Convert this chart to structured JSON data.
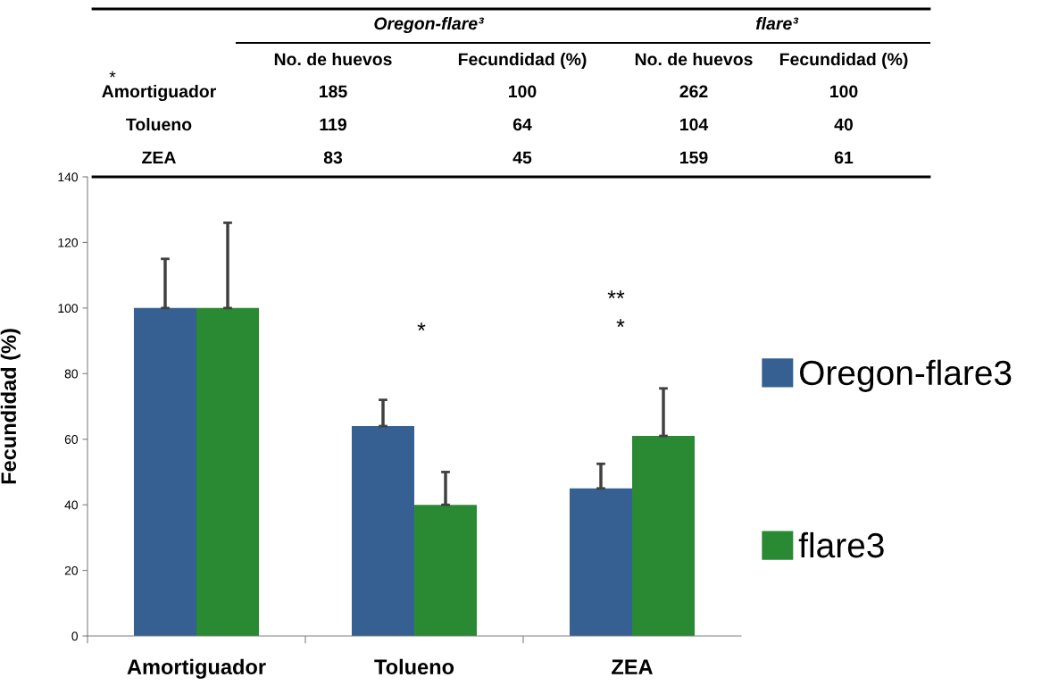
{
  "chart_data": {
    "type": "bar",
    "ylabel": "Fecundidad (%)",
    "categories": [
      "Amortiguador",
      "Tolueno",
      "ZEA"
    ],
    "series": [
      {
        "name": "Oregon-flare3",
        "color": "#376092",
        "values": [
          100,
          64,
          45
        ],
        "errors": [
          [
            100,
            115
          ],
          [
            64,
            72
          ],
          [
            45,
            52.5
          ]
        ]
      },
      {
        "name": "flare3",
        "color": "#2a8a33",
        "values": [
          100,
          40,
          61
        ],
        "errors": [
          [
            100,
            126
          ],
          [
            40,
            50
          ],
          [
            61,
            75.5
          ]
        ]
      }
    ],
    "ylim": [
      0,
      140
    ],
    "yticks": [
      0,
      20,
      40,
      60,
      80,
      100,
      120,
      140
    ],
    "grid": false,
    "legend": "right",
    "annotations": [
      "*",
      "Oregon-flare³",
      "flare³",
      "No. de huevos",
      "Fecundidad (%)",
      "No. de huevos",
      "Fecundidad (%)",
      "185",
      "100",
      "262",
      "100",
      "119",
      "64",
      "104",
      "40",
      "83",
      "45",
      "159",
      "61",
      "*",
      "**",
      "*"
    ]
  }
}
